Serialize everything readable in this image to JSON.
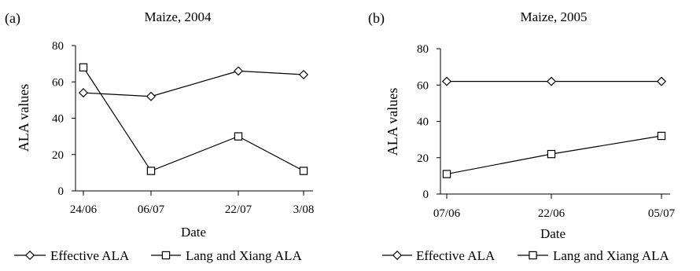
{
  "chart_data": [
    {
      "type": "line",
      "panel_label": "(a)",
      "title": "Maize, 2004",
      "xlabel": "Date",
      "ylabel": "ALA values",
      "categories": [
        "24/06",
        "06/07",
        "22/07",
        "3/08"
      ],
      "ylim": [
        0,
        80
      ],
      "yticks": [
        "0",
        "20",
        "40",
        "60",
        "80"
      ],
      "grid": false,
      "legend_position": "bottom",
      "series": [
        {
          "name": "Effective ALA",
          "marker": "diamond",
          "values": [
            54,
            52,
            66,
            64
          ]
        },
        {
          "name": "Lang and Xiang ALA",
          "marker": "square",
          "values": [
            68,
            11,
            30,
            11
          ]
        }
      ]
    },
    {
      "type": "line",
      "panel_label": "(b)",
      "title": "Maize, 2005",
      "xlabel": "Date",
      "ylabel": "ALA values",
      "categories": [
        "07/06",
        "22/06",
        "05/07"
      ],
      "ylim": [
        0,
        80
      ],
      "yticks": [
        "0",
        "20",
        "40",
        "60",
        "80"
      ],
      "grid": false,
      "legend_position": "bottom",
      "series": [
        {
          "name": "Effective ALA",
          "marker": "diamond",
          "values": [
            62,
            62,
            62
          ]
        },
        {
          "name": "Lang and Xiang ALA",
          "marker": "square",
          "values": [
            11,
            22,
            32
          ]
        }
      ]
    }
  ]
}
